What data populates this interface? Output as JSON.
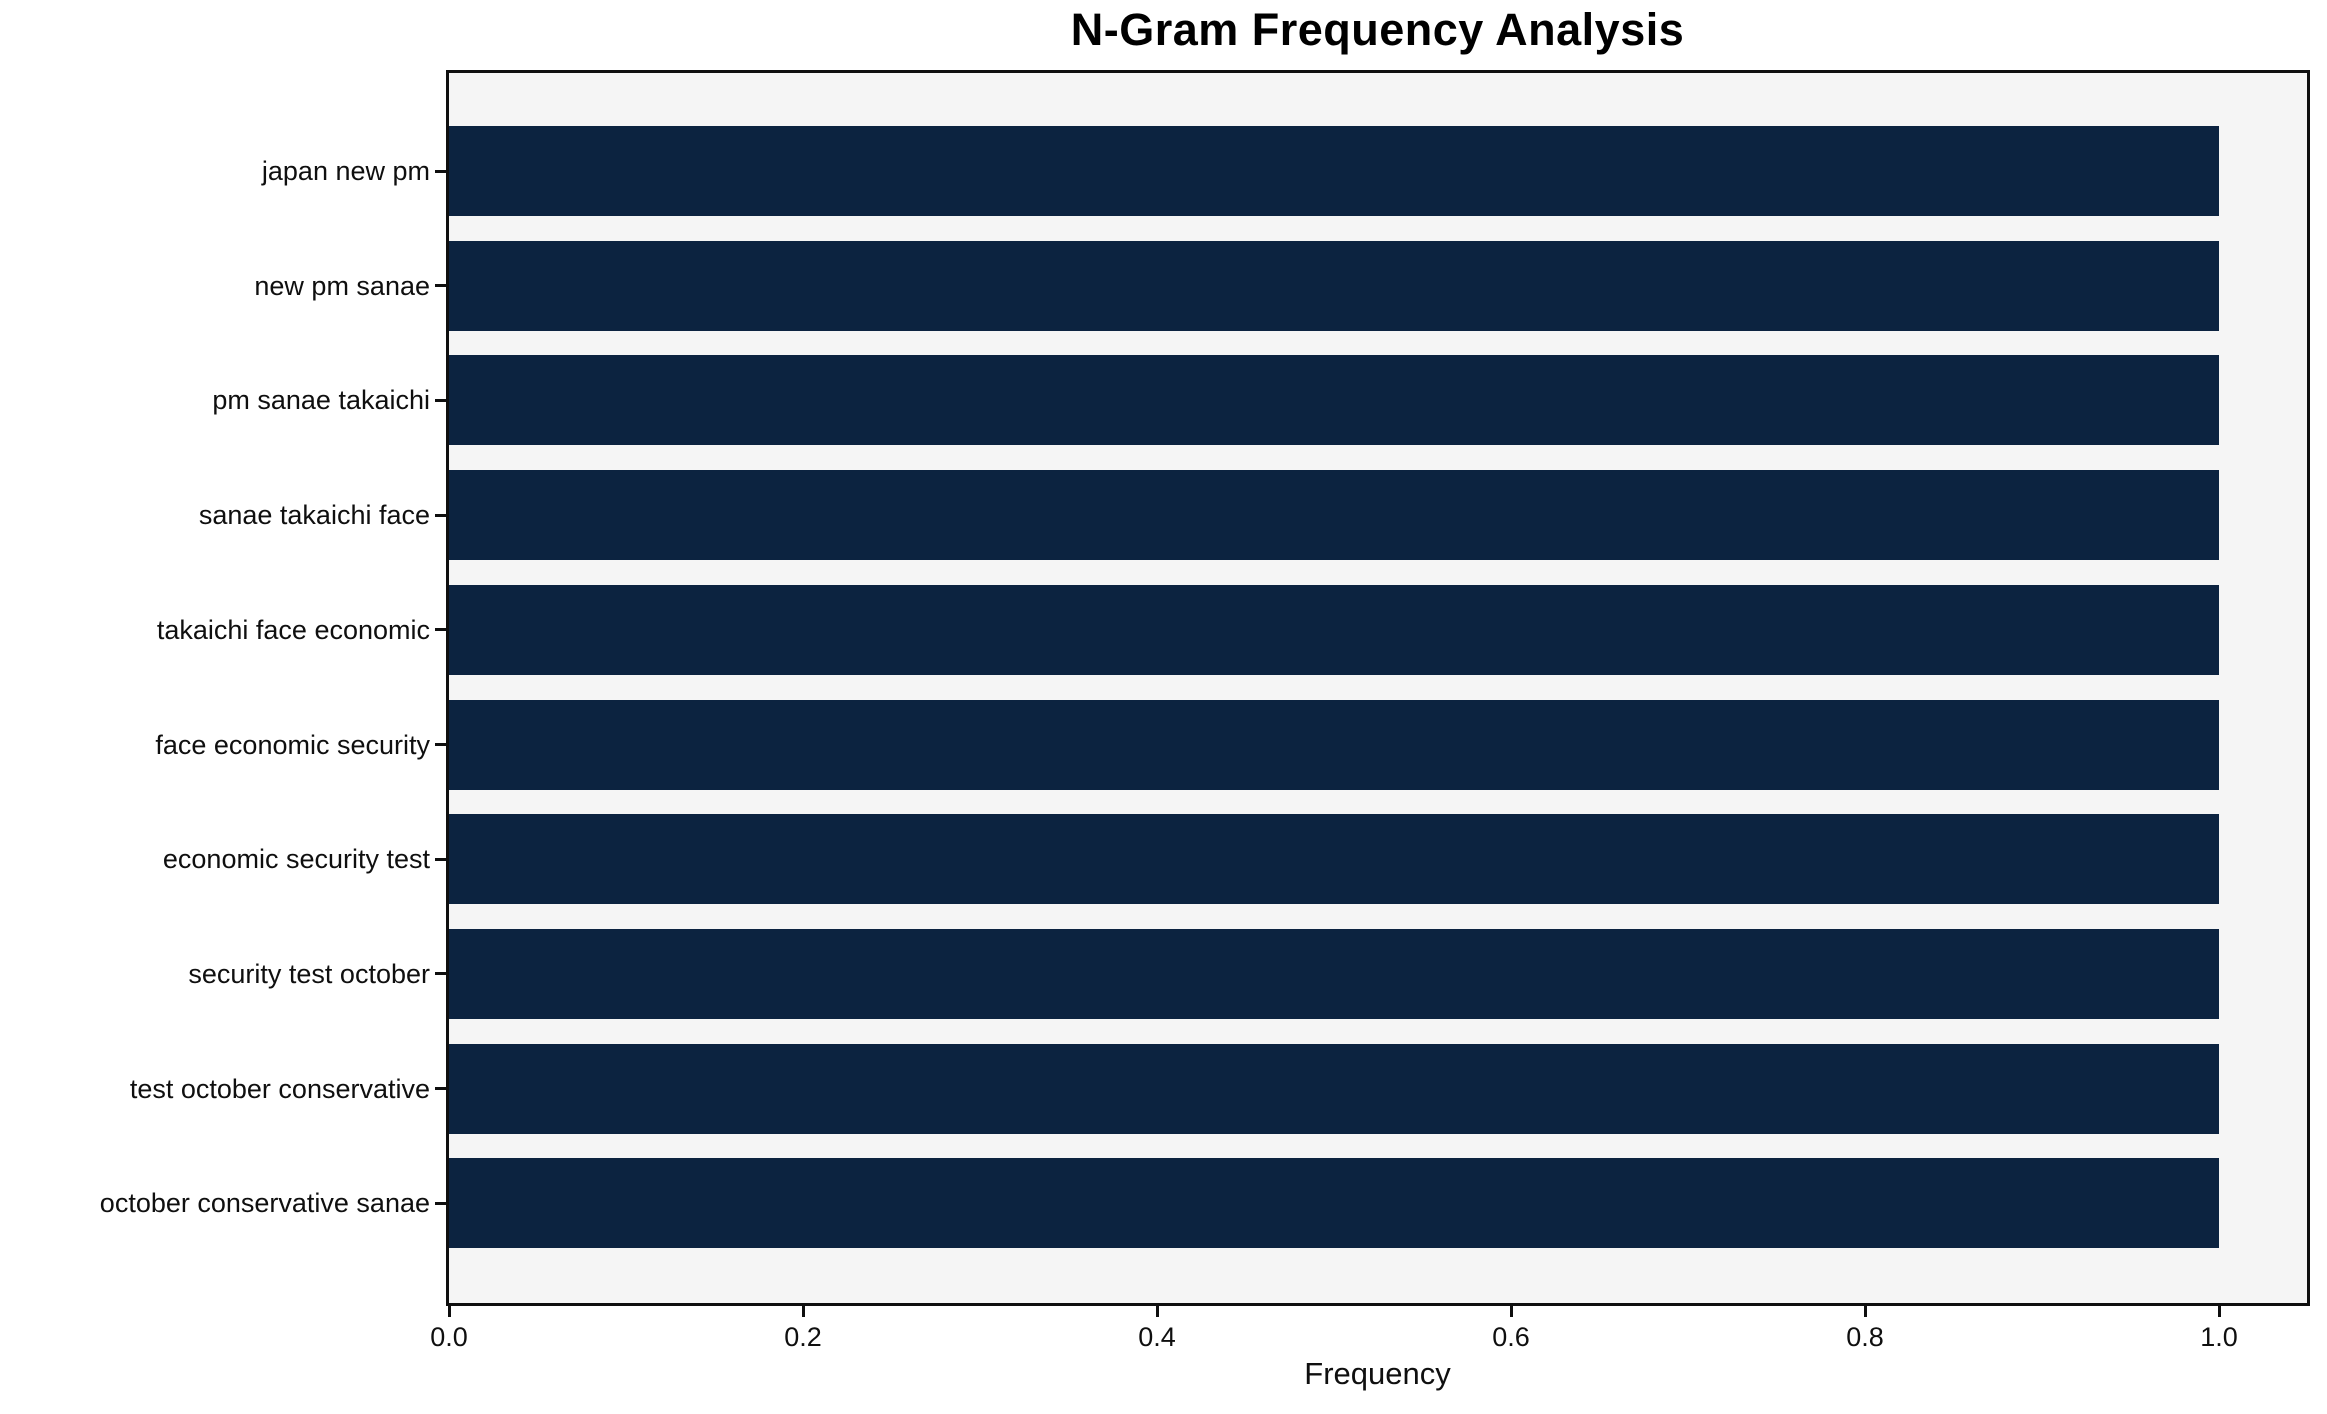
{
  "chart_data": {
    "type": "bar",
    "orientation": "horizontal",
    "title": "N-Gram Frequency Analysis",
    "xlabel": "Frequency",
    "ylabel": "",
    "categories": [
      "japan new pm",
      "new pm sanae",
      "pm sanae takaichi",
      "sanae takaichi face",
      "takaichi face economic",
      "face economic security",
      "economic security test",
      "security test october",
      "test october conservative",
      "october conservative sanae"
    ],
    "values": [
      1.0,
      1.0,
      1.0,
      1.0,
      1.0,
      1.0,
      1.0,
      1.0,
      1.0,
      1.0
    ],
    "x_ticks": [
      0.0,
      0.2,
      0.4,
      0.6,
      0.8,
      1.0
    ],
    "x_tick_labels": [
      "0.0",
      "0.2",
      "0.4",
      "0.6",
      "0.8",
      "1.0"
    ],
    "xlim": [
      0,
      1.05
    ],
    "grid": false,
    "legend_position": "none",
    "bar_fill_fraction": 0.8,
    "colors": {
      "bar": "#0c2340",
      "plot_background": "#f5f5f5",
      "figure_background": "#ffffff",
      "spine": "#0f0f0f",
      "tick": "#0f0f0f",
      "text": "#0f0f0f",
      "title_text": "#000000"
    }
  }
}
